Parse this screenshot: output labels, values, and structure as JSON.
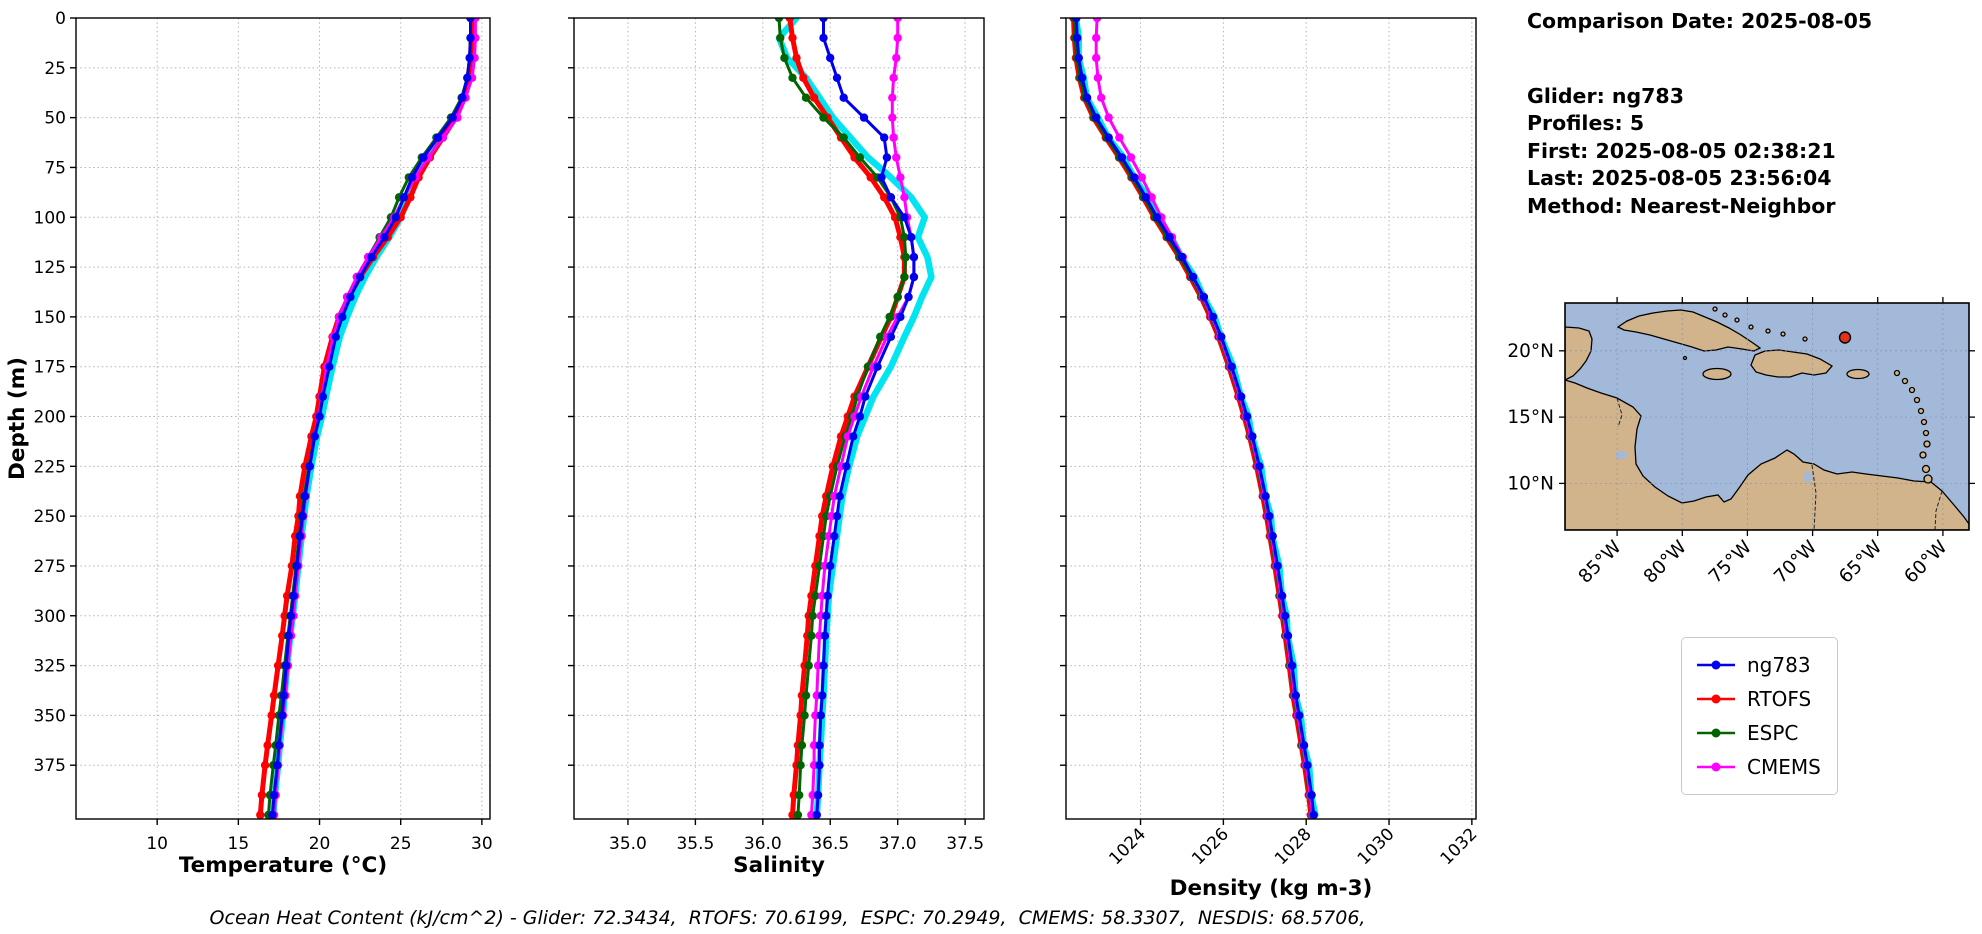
{
  "info_panel": {
    "line1": "Comparison Date: 2025-08-05",
    "line2": "Glider: ng783",
    "line3": "Profiles: 5",
    "line4": "First: 2025-08-05 02:38:21",
    "line5": "Last: 2025-08-05 23:56:04",
    "line6": "Method: Nearest-Neighbor"
  },
  "footer": {
    "ohc_text": "Ocean Heat Content (kJ/cm^2) - Glider: 72.3434,  RTOFS: 70.6199,  ESPC: 70.2949,  CMEMS: 58.3307,  NESDIS: 68.5706,"
  },
  "legend": {
    "entries": [
      {
        "label": "ng783",
        "color": "#0000ee"
      },
      {
        "label": "RTOFS",
        "color": "#ff0000"
      },
      {
        "label": "ESPC",
        "color": "#006400"
      },
      {
        "label": "CMEMS",
        "color": "#ff00ff"
      }
    ]
  },
  "map": {
    "lat_labels": [
      "20°N",
      "15°N",
      "10°N"
    ],
    "lon_labels": [
      "85°W",
      "80°W",
      "75°W",
      "70°W",
      "65°W",
      "60°W"
    ],
    "marker": {
      "label": "glider-location",
      "color": "#e0301e"
    },
    "colors": {
      "ocean": "#a3b9da",
      "land": "#d2b48c",
      "coast": "#000000"
    }
  },
  "chart_data": [
    {
      "type": "line",
      "panel": "temperature",
      "xlabel": "Temperature (°C)",
      "ylabel": "Depth (m)",
      "xlim": [
        5.0,
        30.5
      ],
      "ylim": [
        0,
        402
      ],
      "y_inverted": true,
      "grid": true,
      "xticks": [
        10,
        15,
        20,
        25,
        30
      ],
      "xtick_labels": [
        "10",
        "15",
        "20",
        "25",
        "30"
      ],
      "xtick_rotation": 0,
      "yticks": [
        0,
        25,
        50,
        75,
        100,
        125,
        150,
        175,
        200,
        225,
        250,
        275,
        300,
        325,
        350,
        375
      ],
      "depths": [
        0,
        10,
        20,
        30,
        40,
        50,
        60,
        70,
        80,
        90,
        100,
        110,
        120,
        130,
        140,
        150,
        160,
        175,
        190,
        200,
        210,
        225,
        240,
        250,
        260,
        275,
        290,
        300,
        310,
        325,
        340,
        350,
        365,
        375,
        390,
        400
      ],
      "series": [
        {
          "name": "glider-profiles",
          "color": "#00e5f0",
          "width": 6.5,
          "markers": false,
          "values": [
            29.45,
            29.4,
            29.35,
            29.2,
            28.9,
            28.35,
            27.5,
            26.6,
            25.9,
            25.45,
            25.0,
            24.3,
            23.5,
            22.8,
            22.2,
            21.7,
            21.25,
            20.8,
            20.4,
            20.15,
            19.85,
            19.5,
            19.2,
            19.05,
            18.9,
            18.7,
            18.5,
            18.35,
            18.2,
            18.0,
            17.85,
            17.75,
            17.55,
            17.45,
            17.25,
            17.15
          ]
        },
        {
          "name": "RTOFS",
          "color": "#ff0000",
          "width": 5,
          "markers": true,
          "marker_size": 4.2,
          "values": [
            29.4,
            29.35,
            29.3,
            29.15,
            28.9,
            28.4,
            27.6,
            26.8,
            26.1,
            25.6,
            25.0,
            24.2,
            23.3,
            22.5,
            21.8,
            21.2,
            20.8,
            20.3,
            20.0,
            19.8,
            19.5,
            19.1,
            18.8,
            18.7,
            18.5,
            18.3,
            18.0,
            17.85,
            17.7,
            17.45,
            17.2,
            17.05,
            16.8,
            16.65,
            16.45,
            16.35
          ]
        },
        {
          "name": "ESPC",
          "color": "#006400",
          "width": 3,
          "markers": true,
          "marker_size": 4.2,
          "values": [
            29.3,
            29.3,
            29.25,
            29.1,
            28.75,
            28.1,
            27.2,
            26.3,
            25.5,
            24.9,
            24.4,
            23.7,
            23.0,
            22.3,
            21.7,
            21.2,
            20.9,
            20.5,
            20.2,
            20.0,
            19.7,
            19.35,
            19.05,
            18.9,
            18.75,
            18.55,
            18.35,
            18.2,
            18.05,
            17.85,
            17.65,
            17.5,
            17.3,
            17.15,
            16.95,
            16.85
          ]
        },
        {
          "name": "CMEMS",
          "color": "#ff00ff",
          "width": 3,
          "markers": true,
          "marker_size": 4.2,
          "values": [
            29.6,
            29.6,
            29.55,
            29.4,
            29.0,
            28.5,
            27.6,
            26.7,
            25.9,
            25.2,
            24.6,
            23.8,
            23.0,
            22.3,
            21.7,
            21.2,
            20.85,
            20.45,
            20.15,
            19.95,
            19.7,
            19.4,
            19.15,
            19.0,
            18.9,
            18.7,
            18.5,
            18.4,
            18.25,
            18.05,
            17.9,
            17.75,
            17.55,
            17.45,
            17.3,
            17.2
          ]
        },
        {
          "name": "ng783",
          "color": "#0000ee",
          "width": 3,
          "markers": true,
          "marker_size": 4.2,
          "values": [
            29.3,
            29.3,
            29.25,
            29.1,
            28.8,
            28.2,
            27.3,
            26.4,
            25.7,
            25.2,
            24.7,
            24.0,
            23.2,
            22.5,
            21.9,
            21.4,
            21.0,
            20.6,
            20.2,
            20.0,
            19.7,
            19.4,
            19.1,
            18.95,
            18.8,
            18.6,
            18.4,
            18.25,
            18.1,
            17.95,
            17.8,
            17.7,
            17.5,
            17.4,
            17.2,
            17.1
          ]
        }
      ]
    },
    {
      "type": "line",
      "panel": "salinity",
      "xlabel": "Salinity",
      "ylabel": "Depth (m)",
      "xlim": [
        34.6,
        37.64
      ],
      "ylim": [
        0,
        402
      ],
      "y_inverted": true,
      "grid": true,
      "xticks": [
        35.0,
        35.5,
        36.0,
        36.5,
        37.0,
        37.5
      ],
      "xtick_labels": [
        "35.0",
        "35.5",
        "36.0",
        "36.5",
        "37.0",
        "37.5"
      ],
      "xtick_rotation": 0,
      "yticks": [
        0,
        25,
        50,
        75,
        100,
        125,
        150,
        175,
        200,
        225,
        250,
        275,
        300,
        325,
        350,
        375
      ],
      "depths": [
        0,
        10,
        20,
        30,
        40,
        50,
        60,
        70,
        80,
        90,
        100,
        110,
        120,
        130,
        140,
        150,
        160,
        175,
        190,
        200,
        210,
        225,
        240,
        250,
        260,
        275,
        290,
        300,
        310,
        325,
        340,
        350,
        365,
        375,
        390,
        400
      ],
      "series": [
        {
          "name": "glider-profiles",
          "color": "#00e5f0",
          "width": 6.5,
          "markers": false,
          "values": [
            36.25,
            36.12,
            36.18,
            36.32,
            36.42,
            36.52,
            36.65,
            36.78,
            36.95,
            37.1,
            37.2,
            37.15,
            37.22,
            37.25,
            37.18,
            37.12,
            37.05,
            36.95,
            36.82,
            36.76,
            36.7,
            36.64,
            36.59,
            36.57,
            36.55,
            36.52,
            36.49,
            36.48,
            36.47,
            36.46,
            36.45,
            36.44,
            36.43,
            36.42,
            36.41,
            36.4
          ]
        },
        {
          "name": "RTOFS",
          "color": "#ff0000",
          "width": 5,
          "markers": true,
          "marker_size": 4.2,
          "values": [
            36.2,
            36.22,
            36.25,
            36.3,
            36.38,
            36.48,
            36.58,
            36.68,
            36.8,
            36.9,
            36.98,
            37.02,
            37.05,
            37.05,
            37.0,
            36.95,
            36.88,
            36.78,
            36.68,
            36.63,
            36.58,
            36.52,
            36.47,
            36.44,
            36.42,
            36.39,
            36.36,
            36.34,
            36.33,
            36.31,
            36.29,
            36.28,
            36.26,
            36.25,
            36.23,
            36.22
          ]
        },
        {
          "name": "ESPC",
          "color": "#006400",
          "width": 3,
          "markers": true,
          "marker_size": 4.2,
          "values": [
            36.12,
            36.13,
            36.16,
            36.22,
            36.32,
            36.45,
            36.6,
            36.72,
            36.85,
            36.95,
            37.02,
            37.05,
            37.06,
            37.05,
            37.0,
            36.94,
            36.87,
            36.78,
            36.7,
            36.66,
            36.61,
            36.55,
            36.5,
            36.47,
            36.45,
            36.42,
            36.39,
            36.37,
            36.36,
            36.34,
            36.32,
            36.31,
            36.29,
            36.28,
            36.27,
            36.26
          ]
        },
        {
          "name": "CMEMS",
          "color": "#ff00ff",
          "width": 3,
          "markers": true,
          "marker_size": 4.2,
          "values": [
            37.0,
            37.0,
            36.99,
            36.97,
            36.96,
            36.96,
            36.97,
            36.99,
            37.02,
            37.05,
            37.07,
            37.1,
            37.12,
            37.12,
            37.08,
            37.0,
            36.92,
            36.82,
            36.73,
            36.68,
            36.63,
            36.58,
            36.53,
            36.51,
            36.49,
            36.46,
            36.44,
            36.43,
            36.42,
            36.41,
            36.4,
            36.39,
            36.38,
            36.38,
            36.37,
            36.36
          ]
        },
        {
          "name": "ng783",
          "color": "#0000ee",
          "width": 3,
          "markers": true,
          "marker_size": 4.2,
          "values": [
            36.45,
            36.45,
            36.5,
            36.55,
            36.6,
            36.75,
            36.9,
            36.92,
            36.88,
            36.95,
            37.05,
            37.1,
            37.12,
            37.12,
            37.08,
            37.02,
            36.95,
            36.85,
            36.76,
            36.72,
            36.67,
            36.62,
            36.57,
            36.55,
            36.53,
            36.5,
            36.48,
            36.47,
            36.46,
            36.45,
            36.44,
            36.43,
            36.42,
            36.42,
            36.41,
            36.4
          ]
        }
      ]
    },
    {
      "type": "line",
      "panel": "density",
      "xlabel": "Density (kg m-3)",
      "ylabel": "Depth (m)",
      "xlim": [
        1022.2,
        1032.1
      ],
      "ylim": [
        0,
        402
      ],
      "y_inverted": true,
      "grid": true,
      "xticks": [
        1024,
        1026,
        1028,
        1030,
        1032
      ],
      "xtick_labels": [
        "1024",
        "1026",
        "1028",
        "1030",
        "1032"
      ],
      "xtick_rotation": 45,
      "yticks": [
        0,
        25,
        50,
        75,
        100,
        125,
        150,
        175,
        200,
        225,
        250,
        275,
        300,
        325,
        350,
        375
      ],
      "depths": [
        0,
        10,
        20,
        30,
        40,
        50,
        60,
        70,
        80,
        90,
        100,
        110,
        120,
        130,
        140,
        150,
        160,
        175,
        190,
        200,
        210,
        225,
        240,
        250,
        260,
        275,
        290,
        300,
        310,
        325,
        340,
        350,
        365,
        375,
        390,
        400
      ],
      "series": [
        {
          "name": "glider-profiles",
          "color": "#00e5f0",
          "width": 6.5,
          "markers": false,
          "values": [
            1022.44,
            1022.51,
            1022.5,
            1022.63,
            1022.7,
            1022.97,
            1023.22,
            1023.59,
            1023.84,
            1024.17,
            1024.39,
            1024.74,
            1024.99,
            1025.31,
            1025.52,
            1025.79,
            1025.94,
            1026.24,
            1026.42,
            1026.61,
            1026.69,
            1026.91,
            1027.01,
            1027.15,
            1027.18,
            1027.35,
            1027.41,
            1027.53,
            1027.55,
            1027.7,
            1027.74,
            1027.87,
            1027.94,
            1028.07,
            1028.12,
            1028.22
          ]
        },
        {
          "name": "RTOFS",
          "color": "#ff0000",
          "width": 5,
          "markers": true,
          "marker_size": 4.2,
          "values": [
            1022.38,
            1022.4,
            1022.44,
            1022.52,
            1022.64,
            1022.86,
            1023.16,
            1023.48,
            1023.78,
            1024.06,
            1024.33,
            1024.63,
            1024.93,
            1025.2,
            1025.46,
            1025.68,
            1025.88,
            1026.13,
            1026.36,
            1026.5,
            1026.63,
            1026.8,
            1026.95,
            1027.04,
            1027.12,
            1027.24,
            1027.35,
            1027.42,
            1027.49,
            1027.59,
            1027.68,
            1027.76,
            1027.88,
            1027.96,
            1028.06,
            1028.11
          ]
        },
        {
          "name": "ESPC",
          "color": "#006400",
          "width": 3,
          "markers": true,
          "marker_size": 4.2,
          "values": [
            1022.4,
            1022.42,
            1022.46,
            1022.54,
            1022.66,
            1022.88,
            1023.18,
            1023.5,
            1023.8,
            1024.08,
            1024.35,
            1024.65,
            1024.95,
            1025.22,
            1025.48,
            1025.7,
            1025.9,
            1026.15,
            1026.38,
            1026.52,
            1026.65,
            1026.82,
            1026.97,
            1027.06,
            1027.14,
            1027.26,
            1027.37,
            1027.44,
            1027.51,
            1027.61,
            1027.7,
            1027.78,
            1027.9,
            1027.98,
            1028.08,
            1028.13
          ]
        },
        {
          "name": "CMEMS",
          "color": "#ff00ff",
          "width": 3,
          "markers": true,
          "marker_size": 4.2,
          "values": [
            1022.95,
            1022.93,
            1022.93,
            1022.97,
            1023.05,
            1023.23,
            1023.49,
            1023.77,
            1024.03,
            1024.27,
            1024.5,
            1024.76,
            1025.02,
            1025.26,
            1025.5,
            1025.72,
            1025.92,
            1026.17,
            1026.4,
            1026.54,
            1026.67,
            1026.84,
            1026.99,
            1027.08,
            1027.16,
            1027.28,
            1027.39,
            1027.46,
            1027.53,
            1027.63,
            1027.72,
            1027.8,
            1027.92,
            1028.0,
            1028.1,
            1028.15
          ]
        },
        {
          "name": "ng783",
          "color": "#0000ee",
          "width": 3,
          "markers": true,
          "marker_size": 4.2,
          "values": [
            1022.45,
            1022.47,
            1022.51,
            1022.59,
            1022.71,
            1022.93,
            1023.23,
            1023.55,
            1023.85,
            1024.13,
            1024.4,
            1024.7,
            1025.0,
            1025.27,
            1025.53,
            1025.75,
            1025.95,
            1026.2,
            1026.43,
            1026.57,
            1026.7,
            1026.87,
            1027.02,
            1027.11,
            1027.19,
            1027.31,
            1027.42,
            1027.49,
            1027.56,
            1027.66,
            1027.75,
            1027.83,
            1027.95,
            1028.03,
            1028.13,
            1028.18
          ]
        }
      ]
    }
  ]
}
